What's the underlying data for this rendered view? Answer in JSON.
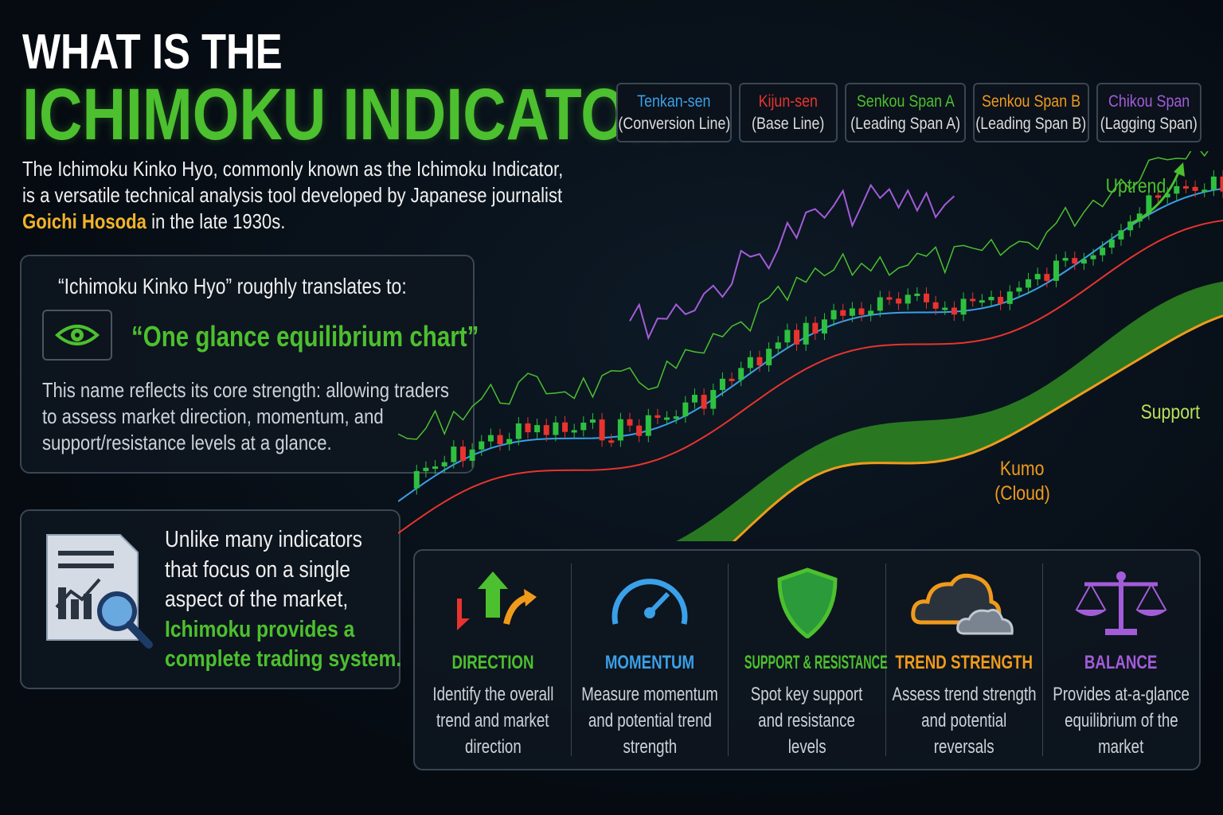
{
  "title": {
    "line1": "WHAT IS THE",
    "line2": "ICHIMOKU INDICATOR?"
  },
  "intro": {
    "line1": "The Ichimoku Kinko Hyo, commonly known as the Ichimoku Indicator,",
    "line2": "is a versatile technical analysis tool developed by Japanese journalist",
    "name": "Goichi Hosoda",
    "line3_rest": " in the late 1930s."
  },
  "translation": {
    "heading": "“Ichimoku Kinko Hyo” roughly translates to:",
    "icon": "eye-icon",
    "quote": "“One glance equilibrium chart”",
    "desc": [
      "This name reflects its core strength: allowing traders",
      "to assess market direction, momentum, and",
      "support/resistance levels at a glance."
    ]
  },
  "system": {
    "icon": "document-chart-magnifier-icon",
    "lines": [
      "Unlike many indicators",
      "that focus on a single",
      "aspect of the market,"
    ],
    "highlight": [
      "Ichimoku provides a",
      "complete trading system."
    ]
  },
  "legend": [
    {
      "name": "Tenkan-sen",
      "sub": "(Conversion Line)",
      "color": "#3aa0e8"
    },
    {
      "name": "Kijun-sen",
      "sub": "(Base Line)",
      "color": "#e8342e"
    },
    {
      "name": "Senkou Span A",
      "sub": "(Leading Span A)",
      "color": "#4cc02e"
    },
    {
      "name": "Senkou Span B",
      "sub": "(Leading Span B)",
      "color": "#f09a1c"
    },
    {
      "name": "Chikou Span",
      "sub": "(Lagging Span)",
      "color": "#a35cd8"
    }
  ],
  "chart_labels": {
    "uptrend": "Uptrend",
    "support": "Support",
    "kumo": "Kumo",
    "cloud": "(Cloud)"
  },
  "features": [
    {
      "title": "DIRECTION",
      "desc": [
        "Identify the overall",
        "trend and market",
        "direction"
      ],
      "color": "#4cc02e",
      "icon": "direction-arrows-icon"
    },
    {
      "title": "MOMENTUM",
      "desc": [
        "Measure momentum",
        "and potential trend",
        "strength"
      ],
      "color": "#3aa0e8",
      "icon": "speedometer-icon"
    },
    {
      "title": "SUPPORT & RESISTANCE",
      "desc": [
        "Spot key support",
        "and resistance",
        "levels"
      ],
      "color": "#4cc02e",
      "icon": "shield-icon"
    },
    {
      "title": "TREND STRENGTH",
      "desc": [
        "Assess trend strength",
        "and potential",
        "reversals"
      ],
      "color": "#f09a1c",
      "icon": "cloud-icon"
    },
    {
      "title": "BALANCE",
      "desc": [
        "Provides at-a-glance",
        "equilibrium of the",
        "market"
      ],
      "color": "#a35cd8",
      "icon": "balance-scale-icon"
    }
  ]
}
